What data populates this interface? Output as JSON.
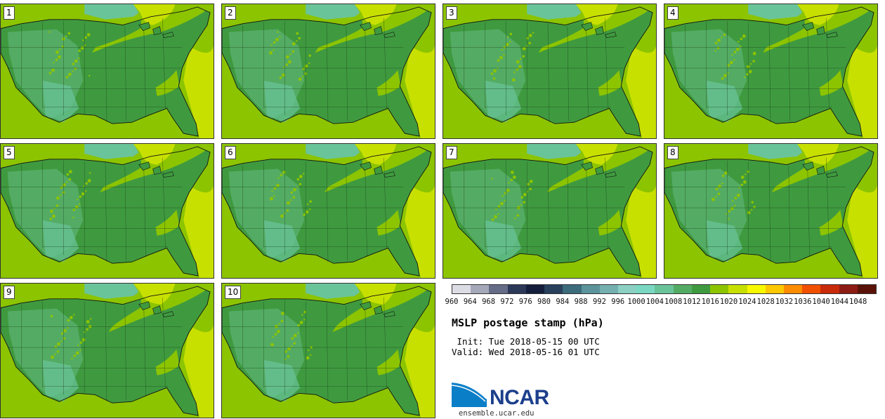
{
  "panels": [
    {
      "label": "1"
    },
    {
      "label": "2"
    },
    {
      "label": "3"
    },
    {
      "label": "4"
    },
    {
      "label": "5"
    },
    {
      "label": "6"
    },
    {
      "label": "7"
    },
    {
      "label": "8"
    },
    {
      "label": "9"
    },
    {
      "label": "10"
    }
  ],
  "colorbar": {
    "unit": "hPa",
    "levels": [
      960,
      964,
      968,
      972,
      976,
      980,
      984,
      988,
      992,
      996,
      1000,
      1004,
      1008,
      1012,
      1016,
      1020,
      1024,
      1028,
      1032,
      1036,
      1040,
      1044,
      1048
    ],
    "labels": [
      "960",
      "964",
      "968",
      "972",
      "976",
      "980",
      "984",
      "988",
      "992",
      "996",
      "1000",
      "1004",
      "1008",
      "1012",
      "1016",
      "1020",
      "1024",
      "1028",
      "1032",
      "1036",
      "1040",
      "1044",
      "1048"
    ],
    "colors": [
      "#dcdce4",
      "#a4a8b8",
      "#646c88",
      "#2c3858",
      "#141e3c",
      "#28405c",
      "#3c6c7c",
      "#5c949c",
      "#74b0b0",
      "#8cd0c4",
      "#7ad8c2",
      "#6ac49a",
      "#54ac64",
      "#3f9a3f",
      "#8cc400",
      "#c8e000",
      "#f8f800",
      "#fcc800",
      "#fc8c00",
      "#f05000",
      "#c82a0a",
      "#8c1c14",
      "#5a1208"
    ]
  },
  "title": "MSLP postage stamp (hPa)",
  "init": " Init: Tue 2018-05-15 00 UTC",
  "valid": "Valid: Wed 2018-05-16 01 UTC",
  "logo_text": "NCAR",
  "url": "ensemble.ucar.edu"
}
